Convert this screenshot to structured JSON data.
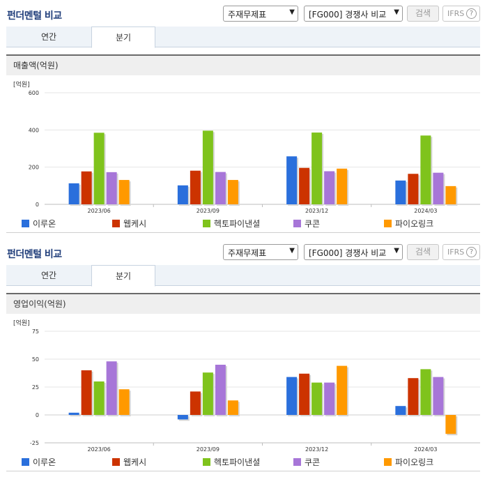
{
  "header": {
    "title": "펀더멘털 비교",
    "select1": "주재무제표",
    "select2": "[FG000] 경쟁사 비교",
    "search_label": "검색",
    "ifrs_label": "IFRS",
    "help_glyph": "?"
  },
  "tabs": {
    "annual": "연간",
    "quarter": "분기"
  },
  "colors": {
    "이루온": "#2a6fdc",
    "웹케시": "#cc3300",
    "헥토파이낸셜": "#7fc31c",
    "쿠콘": "#a776d8",
    "파이오링크": "#ff9900"
  },
  "chart_data": [
    {
      "type": "bar",
      "title": "매출액(억원)",
      "unit": "[억원]",
      "categories": [
        "2023/06",
        "2023/09",
        "2023/12",
        "2024/03"
      ],
      "ylim": [
        0,
        600
      ],
      "yticks": [
        0,
        200,
        400,
        600
      ],
      "series": [
        {
          "name": "이루온",
          "color": "#2a6fdc",
          "values": [
            113,
            102,
            258,
            128
          ]
        },
        {
          "name": "웹케시",
          "color": "#cc3300",
          "values": [
            177,
            181,
            196,
            164
          ]
        },
        {
          "name": "헥토파이낸셜",
          "color": "#7fc31c",
          "values": [
            385,
            396,
            386,
            370
          ]
        },
        {
          "name": "쿠콘",
          "color": "#a776d8",
          "values": [
            173,
            174,
            178,
            170
          ]
        },
        {
          "name": "파이오링크",
          "color": "#ff9900",
          "values": [
            131,
            131,
            192,
            98
          ]
        }
      ]
    },
    {
      "type": "bar",
      "title": "영업이익(억원)",
      "unit": "[억원]",
      "categories": [
        "2023/06",
        "2023/09",
        "2023/12",
        "2024/03"
      ],
      "ylim": [
        -25,
        75
      ],
      "yticks": [
        -25,
        0,
        25,
        50,
        75
      ],
      "series": [
        {
          "name": "이루온",
          "color": "#2a6fdc",
          "values": [
            2,
            -4,
            34,
            8
          ]
        },
        {
          "name": "웹케시",
          "color": "#cc3300",
          "values": [
            40,
            21,
            37,
            33
          ]
        },
        {
          "name": "헥토파이낸셜",
          "color": "#7fc31c",
          "values": [
            30,
            38,
            29,
            41
          ]
        },
        {
          "name": "쿠콘",
          "color": "#a776d8",
          "values": [
            48,
            45,
            29,
            34
          ]
        },
        {
          "name": "파이오링크",
          "color": "#ff9900",
          "values": [
            23,
            13,
            44,
            -17
          ]
        }
      ]
    }
  ]
}
